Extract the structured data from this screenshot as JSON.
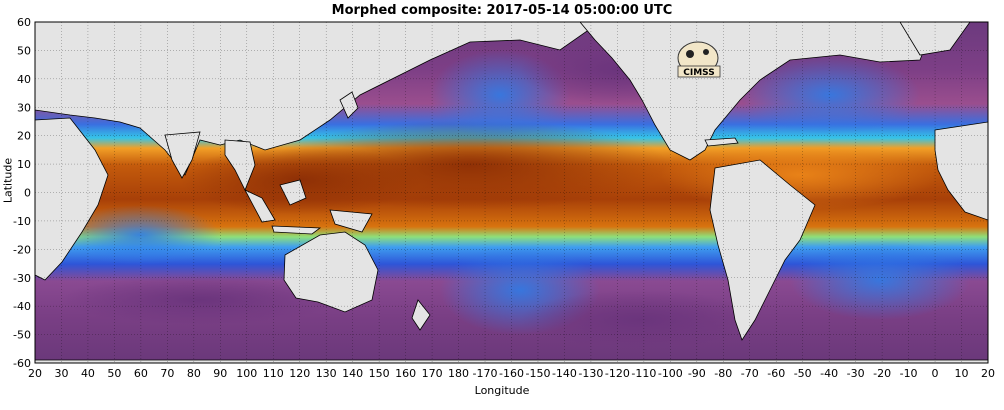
{
  "title": "Morphed composite: 2017-05-14 05:00:00 UTC",
  "axes": {
    "xlabel": "Longitude",
    "ylabel": "Latitude",
    "xticks": [
      "20",
      "30",
      "40",
      "50",
      "60",
      "70",
      "80",
      "90",
      "100",
      "110",
      "120",
      "130",
      "140",
      "150",
      "160",
      "170",
      "180",
      "-170",
      "-160",
      "-150",
      "-140",
      "-130",
      "-120",
      "-110",
      "-100",
      "-90",
      "-80",
      "-70",
      "-60",
      "-50",
      "-40",
      "-30",
      "-20",
      "-10",
      "0",
      "10",
      "20"
    ],
    "yticks": [
      "60",
      "50",
      "40",
      "30",
      "20",
      "10",
      "0",
      "-10",
      "-20",
      "-30",
      "-40",
      "-50",
      "-60"
    ],
    "xlim": [
      20,
      380
    ],
    "ylim": [
      -60,
      60
    ]
  },
  "colors": {
    "land": "#e4e4e4",
    "ocean_dry": "#7b3f86",
    "moist_high": "#b84a06",
    "moist_mid": "#f08a1a",
    "moist_low": "#3a8cf0",
    "grid": "#000000"
  },
  "logo": {
    "text": "CIMSS",
    "icon": "cimss-logo-icon"
  }
}
